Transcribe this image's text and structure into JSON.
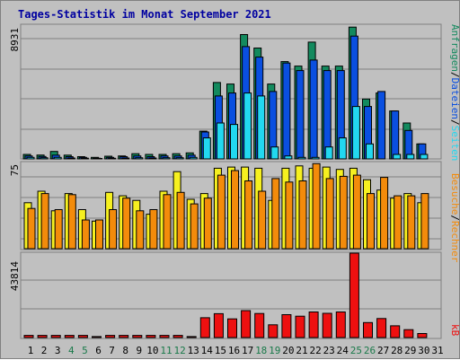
{
  "title": "Tages-Statistik im Monat September 2021",
  "colors": {
    "background": "#c0c0c0",
    "grid": "#808080",
    "title": "#0000a0",
    "anfragen": "#138a5e",
    "dateien": "#0a4fe0",
    "seiten": "#22d8f0",
    "besuche": "#f6f020",
    "rechner": "#f38b0b",
    "kb": "#ee1010",
    "weekday": "#000000",
    "weekend": "#1a7a4a"
  },
  "right_labels": {
    "top": [
      "Anfragen",
      "/",
      "Dateien",
      "/",
      "Seiten"
    ],
    "middle": [
      "Besuche",
      "/",
      "Rechner"
    ],
    "bottom": [
      "kB"
    ]
  },
  "chart_data": [
    {
      "type": "bar",
      "panel": "top",
      "ymax_label": "8931",
      "ylim": [
        0,
        8931
      ],
      "x": [
        1,
        2,
        3,
        4,
        5,
        6,
        7,
        8,
        9,
        10,
        11,
        12,
        13,
        14,
        15,
        16,
        17,
        18,
        19,
        20,
        21,
        22,
        23,
        24,
        25,
        26,
        27,
        28,
        29,
        30,
        31
      ],
      "series": [
        {
          "name": "Anfragen",
          "values": [
            300,
            260,
            500,
            250,
            150,
            100,
            180,
            200,
            350,
            300,
            300,
            350,
            400,
            1850,
            5100,
            5000,
            8300,
            7400,
            5000,
            6500,
            6200,
            7800,
            6200,
            6200,
            8800,
            4000,
            4400,
            3200,
            2400,
            1000,
            0
          ]
        },
        {
          "name": "Dateien",
          "values": [
            200,
            160,
            250,
            150,
            100,
            50,
            100,
            150,
            200,
            150,
            200,
            200,
            250,
            1800,
            4200,
            4400,
            7500,
            6800,
            4500,
            6400,
            5900,
            6600,
            5900,
            5900,
            8200,
            3500,
            4500,
            3200,
            1900,
            1000,
            0
          ]
        },
        {
          "name": "Seiten",
          "values": [
            100,
            80,
            100,
            60,
            50,
            30,
            40,
            60,
            80,
            60,
            80,
            80,
            100,
            1400,
            2400,
            2300,
            4400,
            4200,
            800,
            200,
            100,
            100,
            800,
            1400,
            3500,
            1000,
            0,
            300,
            300,
            300,
            0
          ]
        }
      ]
    },
    {
      "type": "bar",
      "panel": "middle",
      "ymax_label": "75",
      "ylim": [
        0,
        75
      ],
      "x": [
        1,
        2,
        3,
        4,
        5,
        6,
        7,
        8,
        9,
        10,
        11,
        12,
        13,
        14,
        15,
        16,
        17,
        18,
        19,
        20,
        21,
        22,
        23,
        24,
        25,
        26,
        27,
        28,
        29,
        30,
        31
      ],
      "series": [
        {
          "name": "Besuche",
          "values": [
            40,
            50,
            33,
            48,
            34,
            24,
            49,
            46,
            42,
            30,
            50,
            67,
            43,
            48,
            70,
            71,
            71,
            70,
            42,
            70,
            72,
            70,
            71,
            69,
            70,
            60,
            51,
            44,
            48,
            40,
            0
          ]
        },
        {
          "name": "Rechner",
          "values": [
            35,
            48,
            34,
            47,
            25,
            25,
            34,
            44,
            33,
            34,
            47,
            49,
            39,
            44,
            64,
            68,
            59,
            50,
            61,
            58,
            59,
            74,
            61,
            63,
            64,
            48,
            62,
            46,
            46,
            48,
            0
          ]
        }
      ]
    },
    {
      "type": "bar",
      "panel": "bottom",
      "ymax_label": "43814",
      "ylim": [
        0,
        43814
      ],
      "x": [
        1,
        2,
        3,
        4,
        5,
        6,
        7,
        8,
        9,
        10,
        11,
        12,
        13,
        14,
        15,
        16,
        17,
        18,
        19,
        20,
        21,
        22,
        23,
        24,
        25,
        26,
        27,
        28,
        29,
        30,
        31
      ],
      "series": [
        {
          "name": "kB",
          "values": [
            1100,
            1100,
            1100,
            1100,
            1100,
            500,
            1100,
            1100,
            1100,
            1100,
            1100,
            1100,
            500,
            10300,
            12400,
            9700,
            14000,
            12500,
            6600,
            11900,
            11100,
            13300,
            12600,
            13300,
            43800,
            7800,
            9900,
            6100,
            4100,
            2100,
            0
          ]
        }
      ]
    }
  ],
  "x_labels": [
    "1",
    "2",
    "3",
    "4",
    "5",
    "6",
    "7",
    "8",
    "9",
    "10",
    "11",
    "12",
    "13",
    "14",
    "15",
    "16",
    "17",
    "18",
    "19",
    "20",
    "21",
    "22",
    "23",
    "24",
    "25",
    "26",
    "27",
    "28",
    "29",
    "30",
    "31"
  ],
  "weekend_days": [
    4,
    5,
    11,
    12,
    18,
    19,
    25,
    26
  ]
}
